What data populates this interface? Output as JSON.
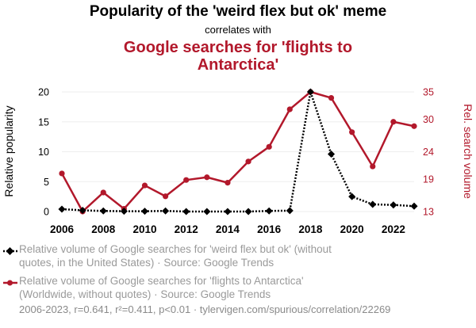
{
  "header": {
    "title": "Popularity of the 'weird flex but ok' meme",
    "subtitle": "correlates with",
    "title2": "Google searches for 'flights to Antarctica'"
  },
  "colors": {
    "series1": "#000000",
    "series2": "#b2182b",
    "legend_text": "#9a9a9a",
    "grid": "#eeeeee"
  },
  "chart_data": {
    "type": "line",
    "x": [
      2006,
      2007,
      2008,
      2009,
      2010,
      2011,
      2012,
      2013,
      2014,
      2015,
      2016,
      2017,
      2018,
      2019,
      2020,
      2021,
      2022,
      2023
    ],
    "x_ticks": [
      "2006",
      "2008",
      "2010",
      "2012",
      "2014",
      "2016",
      "2018",
      "2020",
      "2022"
    ],
    "ylabel": "Relative popularity",
    "ylabel_right": "Rel. search volume",
    "ylim": [
      0,
      20
    ],
    "ylim_right": [
      13,
      35
    ],
    "y_ticks": [
      "0",
      "5",
      "10",
      "15",
      "20"
    ],
    "y_ticks_right": [
      "13",
      "19",
      "24",
      "30",
      "35"
    ],
    "grid": true,
    "series": [
      {
        "name": "Relative volume of Google searches for 'weird flex but ok' (without quotes, in the United States) · Source: Google Trends",
        "axis": "left",
        "style": "dotted",
        "values": [
          0.4,
          0.2,
          0.1,
          0.05,
          0.05,
          0.1,
          0.0,
          0.0,
          0.0,
          0.0,
          0.1,
          0.15,
          20.0,
          9.6,
          2.5,
          1.2,
          1.1,
          0.9
        ]
      },
      {
        "name": "Relative volume of Google searches for 'flights to Antarctica' (Worldwide, without quotes) · Source: Google Trends",
        "axis": "right",
        "style": "solid",
        "values": [
          20.0,
          13.0,
          16.5,
          13.5,
          17.8,
          15.8,
          18.8,
          19.3,
          18.3,
          22.2,
          24.9,
          31.8,
          35.0,
          33.9,
          27.6,
          21.3,
          29.5,
          28.7
        ]
      }
    ]
  },
  "legend": [
    {
      "text": "Relative volume of Google searches for 'weird flex but ok' (without quotes, in the United States) · Source: Google Trends"
    },
    {
      "text": "Relative volume of Google searches for 'flights to Antarctica' (Worldwide, without quotes) · Source: Google Trends"
    }
  ],
  "footer": {
    "text": "2006-2023, r=0.641, r²=0.411, p<0.01 · tylervigen.com/spurious/correlation/22269"
  }
}
